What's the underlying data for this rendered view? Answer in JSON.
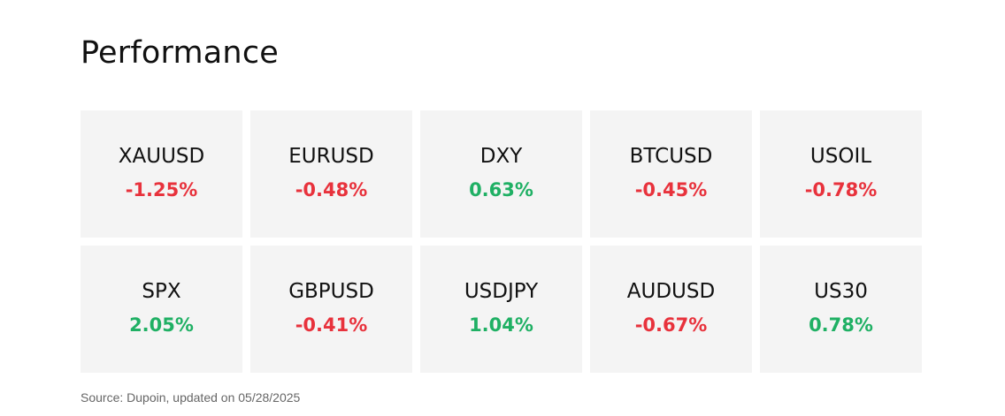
{
  "title": "Performance",
  "colors": {
    "positive": "#1fb064",
    "negative": "#e8323c",
    "card_background": "#f4f4f4"
  },
  "instruments": [
    {
      "symbol": "XAUUSD",
      "change": "-1.25%",
      "direction": "negative"
    },
    {
      "symbol": "EURUSD",
      "change": "-0.48%",
      "direction": "negative"
    },
    {
      "symbol": "DXY",
      "change": "0.63%",
      "direction": "positive"
    },
    {
      "symbol": "BTCUSD",
      "change": "-0.45%",
      "direction": "negative"
    },
    {
      "symbol": "USOIL",
      "change": "-0.78%",
      "direction": "negative"
    },
    {
      "symbol": "SPX",
      "change": "2.05%",
      "direction": "positive"
    },
    {
      "symbol": "GBPUSD",
      "change": "-0.41%",
      "direction": "negative"
    },
    {
      "symbol": "USDJPY",
      "change": "1.04%",
      "direction": "positive"
    },
    {
      "symbol": "AUDUSD",
      "change": "-0.67%",
      "direction": "negative"
    },
    {
      "symbol": "US30",
      "change": "0.78%",
      "direction": "positive"
    }
  ],
  "source": "Source: Dupoin, updated on 05/28/2025"
}
